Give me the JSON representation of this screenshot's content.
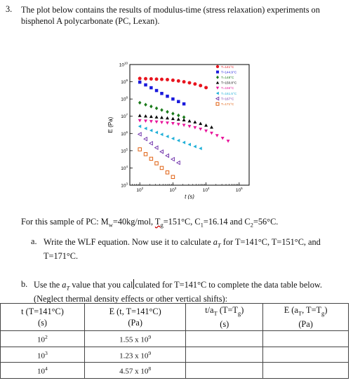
{
  "question": {
    "number": "3.",
    "line1": "The plot below contains the results of modulus-time (stress relaxation) experiments on",
    "line2": "bisphenol A polycarbonate (PC, Lexan)."
  },
  "chart_data": {
    "type": "scatter",
    "xlabel": "t (s)",
    "ylabel": "E (Pa)",
    "x_scale": "log",
    "y_scale": "log",
    "xlim": [
      50,
      200000
    ],
    "ylim": [
      1000,
      10000000000
    ],
    "x_ticks": [
      {
        "base": "10",
        "exp": "2",
        "value": 100
      },
      {
        "base": "10",
        "exp": "3",
        "value": 1000
      },
      {
        "base": "10",
        "exp": "4",
        "value": 10000
      },
      {
        "base": "10",
        "exp": "5",
        "value": 100000
      }
    ],
    "y_ticks": [
      {
        "base": "10",
        "exp": "3",
        "value": 1000
      },
      {
        "base": "10",
        "exp": "4",
        "value": 10000
      },
      {
        "base": "10",
        "exp": "5",
        "value": 100000
      },
      {
        "base": "10",
        "exp": "6",
        "value": 1000000
      },
      {
        "base": "10",
        "exp": "7",
        "value": 10000000
      },
      {
        "base": "10",
        "exp": "8",
        "value": 100000000
      },
      {
        "base": "10",
        "exp": "9",
        "value": 1000000000
      },
      {
        "base": "10",
        "exp": "10",
        "value": 10000000000
      }
    ],
    "legend_position": "top-right",
    "series": [
      {
        "name": "T=141°C",
        "marker": "circle",
        "color": "#e8141e",
        "x": [
          100,
          150,
          220,
          320,
          460,
          680,
          1000,
          1470,
          2150,
          3160,
          4640,
          6810,
          10000
        ],
        "y": [
          1550000000.0,
          1500000000.0,
          1460000000.0,
          1420000000.0,
          1380000000.0,
          1330000000.0,
          1230000000.0,
          1120000000.0,
          1000000000.0,
          870000000.0,
          740000000.0,
          600000000.0,
          457000000.0
        ]
      },
      {
        "name": "T=144.9°C",
        "marker": "square",
        "color": "#1a1adc",
        "x": [
          100,
          150,
          220,
          320,
          460,
          680,
          1000,
          1470,
          2150
        ],
        "y": [
          950000000.0,
          660000000.0,
          450000000.0,
          310000000.0,
          210000000.0,
          145000000.0,
          100000000.0,
          71000000.0,
          52000000.0
        ]
      },
      {
        "name": "T=148°C",
        "marker": "diamond",
        "color": "#1a7a1a",
        "x": [
          100,
          150,
          220,
          320,
          460,
          680,
          1000,
          1470,
          2150
        ],
        "y": [
          61000000.0,
          47000000.0,
          37000000.0,
          29000000.0,
          23000000.0,
          18000000.0,
          14200000.0,
          11200000.0,
          8800000.0
        ]
      },
      {
        "name": "T=150.8°C",
        "marker": "triangle-up",
        "color": "#000000",
        "x": [
          100,
          150,
          220,
          320,
          460,
          680,
          1000,
          1470,
          2150,
          3160,
          4640,
          6810,
          10000,
          14700
        ],
        "y": [
          11000000.0,
          10200000.0,
          9600000.0,
          9000000.0,
          8500000.0,
          7900000.0,
          7300000.0,
          6700000.0,
          6100000.0,
          5300000.0,
          4600000.0,
          3800000.0,
          3000000.0,
          2300000.0
        ]
      },
      {
        "name": "T=156°C",
        "marker": "triangle-down",
        "color": "#e8149a",
        "x": [
          100,
          150,
          220,
          320,
          460,
          680,
          1000,
          1470,
          2150,
          3160,
          4640,
          6810,
          10000,
          14700,
          21500,
          31600,
          46400
        ],
        "y": [
          5600000.0,
          5300000.0,
          5000000.0,
          4700000.0,
          4400000.0,
          4100000.0,
          3800000.0,
          3400000.0,
          3000000.0,
          2600000.0,
          2200000.0,
          1800000.0,
          1400000.0,
          1050000.0,
          760000.0,
          530000.0,
          360000.0
        ]
      },
      {
        "name": "T=161.5°C",
        "marker": "triangle-left",
        "color": "#20b0d8",
        "x": [
          100,
          150,
          220,
          320,
          460,
          680,
          1000,
          1470,
          2150,
          3160,
          4640,
          6810
        ],
        "y": [
          2600000.0,
          1950000.0,
          1500000.0,
          1150000.0,
          880000.0,
          670000.0,
          510000.0,
          390000.0,
          300000.0,
          230000.0,
          175000.0,
          135000.0
        ]
      },
      {
        "name": "T=167°C",
        "marker": "triangle-left-open",
        "color": "#6a2aa8",
        "x": [
          100,
          150,
          220,
          320,
          460,
          680,
          1000,
          1470
        ],
        "y": [
          900000.0,
          480000.0,
          270000.0,
          150000.0,
          88000.0,
          52000.0,
          32000.0,
          20000.0
        ]
      },
      {
        "name": "T=171°C",
        "marker": "square-open",
        "color": "#e06010",
        "x": [
          100,
          150,
          220,
          320,
          460,
          680,
          1000
        ],
        "y": [
          120000.0,
          63000.0,
          34000.0,
          18500.0,
          10000.0,
          5500.0,
          3000.0
        ]
      }
    ]
  },
  "given": {
    "prefix": "For this sample of PC: M",
    "mw_sub": "w",
    "mw_rest": "=40kg/mol, ",
    "tg_t": "T",
    "tg_sub": "g",
    "tg_rest": "=151°C, C",
    "c1_sub": "1",
    "c1_rest": "=16.14 and C",
    "c2_sub": "2",
    "c2_rest": "=56°C."
  },
  "part_a": {
    "letter": "a.",
    "text1": "Write the WLF equation. Now use it to calculate ",
    "aT": "a",
    "aT_sub": "T",
    "text2": " for T=141°C, T=151°C, and T=171°C."
  },
  "part_b": {
    "letter": "b.",
    "text1": "Use the ",
    "aT": "a",
    "aT_sub": "T",
    "text2": " value that you cal",
    "text3": "culated for T=141°C to complete the data table below.",
    "line2": "(Neglect thermal density effects or other vertical shifts):"
  },
  "table": {
    "headers": [
      {
        "line1": "t (T=141°C)",
        "line2": "(s)"
      },
      {
        "line1": "E (t, T=141°C)",
        "line2": "(Pa)"
      },
      {
        "line1_pre": "t/a",
        "line1_sub": "T",
        "line1_mid": " (T=T",
        "line1_sub2": "g",
        "line1_post": ")",
        "line2": "(s)"
      },
      {
        "line1_pre": "E (a",
        "line1_sub": "T",
        "line1_mid": ", T=T",
        "line1_sub2": "g",
        "line1_post": ")",
        "line2": "(Pa)"
      }
    ],
    "rows": [
      {
        "t_base": "10",
        "t_exp": "2",
        "E_mant": "1.55 x 10",
        "E_exp": "9",
        "shifted_t": "",
        "shifted_E": ""
      },
      {
        "t_base": "10",
        "t_exp": "3",
        "E_mant": "1.23 x 10",
        "E_exp": "9",
        "shifted_t": "",
        "shifted_E": ""
      },
      {
        "t_base": "10",
        "t_exp": "4",
        "E_mant": "4.57 x 10",
        "E_exp": "8",
        "shifted_t": "",
        "shifted_E": ""
      }
    ]
  }
}
